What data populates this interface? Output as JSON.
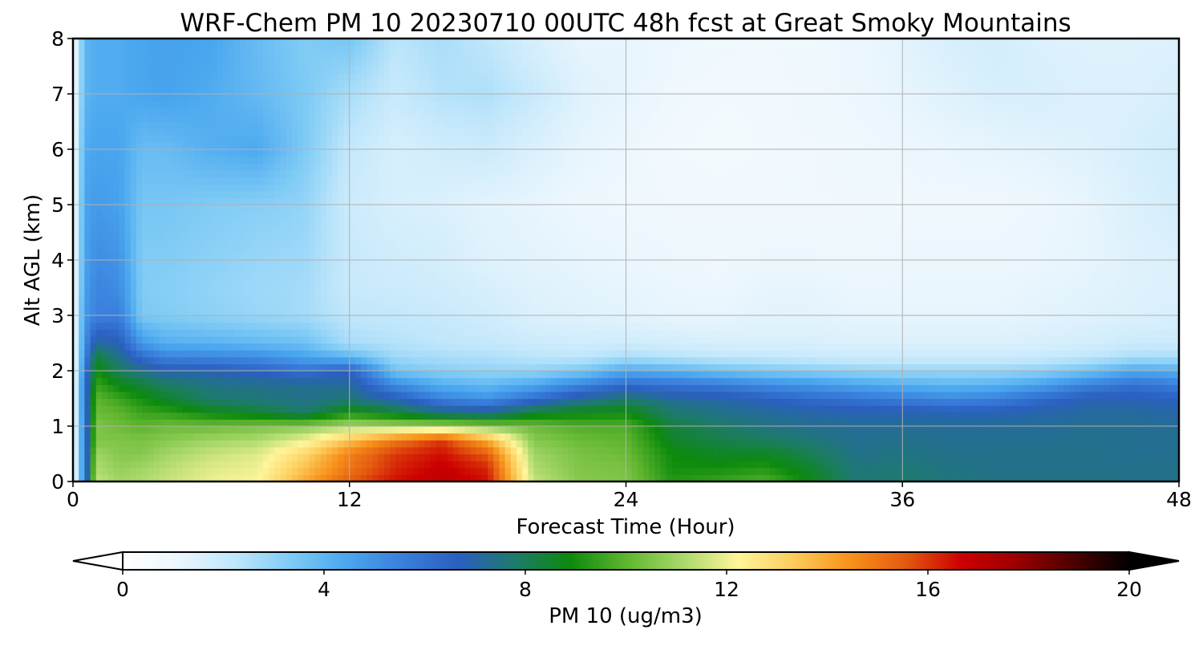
{
  "chart_data": {
    "type": "heatmap",
    "title": "WRF-Chem PM 10  20230710 00UTC 48h fcst at Great Smoky Mountains",
    "xlabel": "Forecast Time (Hour)",
    "ylabel": "Alt AGL (km)",
    "xlim": [
      0,
      48
    ],
    "ylim": [
      0,
      8
    ],
    "x_ticks": [
      "0",
      "12",
      "24",
      "36",
      "48"
    ],
    "y_ticks": [
      "0",
      "1",
      "2",
      "3",
      "4",
      "5",
      "6",
      "7",
      "8"
    ],
    "grid": true,
    "hours": [
      0,
      0.5,
      1,
      2,
      3,
      4,
      6,
      8,
      10,
      12,
      14,
      16,
      18,
      20,
      22,
      24,
      26,
      28,
      30,
      32,
      34,
      36,
      38,
      40,
      42,
      44,
      46,
      48
    ],
    "altitudes_km": [
      0,
      0.25,
      0.5,
      0.75,
      1,
      1.25,
      1.5,
      1.75,
      2,
      2.25,
      2.5,
      3,
      3.5,
      4,
      5,
      6,
      7,
      8
    ],
    "profiles": [
      {
        "hour": 0,
        "pm10": [
          0.5,
          0.5,
          0.5,
          0.5,
          0.5,
          0.5,
          0.5,
          0.5,
          0.5,
          0.5,
          0.5,
          0.5,
          0.5,
          0.5,
          0.5,
          0.5,
          0.5,
          0.5
        ]
      },
      {
        "hour": 0.5,
        "pm10": [
          5.5,
          5.5,
          5.5,
          5.6,
          5.6,
          5.7,
          5.8,
          5.8,
          5.5,
          5.2,
          5,
          4.8,
          4.6,
          4.5,
          4.5,
          4.3,
          4,
          4
        ]
      },
      {
        "hour": 1,
        "pm10": [
          11.5,
          11.2,
          11,
          10.5,
          10.5,
          10.2,
          10,
          9.5,
          9,
          8.5,
          7.2,
          5.5,
          5.4,
          5.2,
          4.8,
          4.5,
          4.3,
          4.3
        ]
      },
      {
        "hour": 2,
        "pm10": [
          11,
          10.8,
          10.6,
          10.5,
          10.2,
          10,
          9.5,
          8.8,
          8,
          7.4,
          6.8,
          5.6,
          5.2,
          5,
          4.6,
          4.5,
          4.3,
          4.3
        ]
      },
      {
        "hour": 3,
        "pm10": [
          11.2,
          11,
          10.6,
          10.4,
          10,
          9.5,
          9,
          8.4,
          7.4,
          6.2,
          4.8,
          3.4,
          3.3,
          3.3,
          3.5,
          3.8,
          4.5,
          4.5
        ]
      },
      {
        "hour": 4,
        "pm10": [
          11.5,
          11.3,
          11,
          10.6,
          10.2,
          9.4,
          8.5,
          8,
          6.8,
          5.5,
          4.2,
          3.3,
          3.2,
          3.3,
          3.5,
          3.8,
          4.6,
          4.6
        ]
      },
      {
        "hour": 6,
        "pm10": [
          12,
          11.8,
          11.5,
          11,
          10.2,
          8.8,
          7.8,
          7.5,
          6.8,
          5.4,
          4.1,
          3.1,
          3,
          3.1,
          3.3,
          4.2,
          4.3,
          4.5
        ]
      },
      {
        "hour": 8,
        "pm10": [
          12.2,
          12,
          11.8,
          11.2,
          10.4,
          8.4,
          7.6,
          7.4,
          6.5,
          5.2,
          3.9,
          2.9,
          2.8,
          2.9,
          3.2,
          4.4,
          3.9,
          3.8
        ]
      },
      {
        "hour": 10,
        "pm10": [
          14,
          13.5,
          13,
          12,
          10.6,
          7.8,
          7.4,
          7.3,
          6,
          4.6,
          3.7,
          2.7,
          2.7,
          2.8,
          3,
          3.4,
          3.4,
          3.3
        ]
      },
      {
        "hour": 12,
        "pm10": [
          15.5,
          15,
          14.8,
          13.5,
          11.2,
          9,
          7.6,
          7.2,
          6.6,
          4,
          2.6,
          2.2,
          2,
          2,
          1.9,
          2.1,
          2.6,
          3.5
        ]
      },
      {
        "hour": 14,
        "pm10": [
          16.5,
          16.2,
          16,
          15,
          11,
          8.4,
          6.8,
          5.2,
          3.6,
          2.8,
          2.4,
          2.1,
          1.9,
          1.8,
          1.6,
          1.6,
          2,
          2.3
        ]
      },
      {
        "hour": 16,
        "pm10": [
          17,
          16.8,
          16.5,
          16,
          11,
          7.5,
          5.5,
          4.2,
          3.2,
          2.6,
          2.2,
          2,
          1.8,
          1.7,
          1.5,
          1.8,
          2.4,
          2.6
        ]
      },
      {
        "hour": 18,
        "pm10": [
          16.5,
          16.2,
          15.5,
          14,
          10.6,
          7.3,
          5,
          3.9,
          3,
          2.5,
          2.1,
          1.8,
          1.6,
          1.4,
          1.3,
          1.9,
          2.5,
          2.2
        ]
      },
      {
        "hour": 20,
        "pm10": [
          11.5,
          11.2,
          11,
          10.6,
          10.2,
          8.5,
          6.1,
          4.4,
          3,
          2.3,
          1.9,
          1.5,
          1.4,
          1.3,
          1.2,
          1.5,
          2,
          1.6
        ]
      },
      {
        "hour": 22,
        "pm10": [
          10.6,
          10.5,
          10.4,
          10.2,
          9.8,
          8.8,
          7.2,
          5.4,
          3.4,
          2.2,
          1.8,
          1.4,
          1.3,
          1.2,
          1,
          1.2,
          1.4,
          1.2
        ]
      },
      {
        "hour": 24,
        "pm10": [
          10.5,
          10.4,
          10.2,
          10,
          9.8,
          8.9,
          7.8,
          6.2,
          4.4,
          2.6,
          1.8,
          1.3,
          1.2,
          1.1,
          0.9,
          1,
          1.2,
          1.2
        ]
      },
      {
        "hour": 26,
        "pm10": [
          9.2,
          9,
          8.9,
          8.6,
          8.3,
          7.8,
          7.2,
          5.9,
          4.1,
          2.4,
          1.7,
          1.2,
          1.1,
          1,
          0.8,
          0.7,
          0.9,
          1
        ]
      },
      {
        "hour": 28,
        "pm10": [
          9.5,
          9,
          8.6,
          8.2,
          7.9,
          7.4,
          7,
          5.7,
          3.7,
          2.2,
          1.6,
          1.2,
          1,
          0.9,
          0.8,
          0.6,
          0.7,
          0.9
        ]
      },
      {
        "hour": 30,
        "pm10": [
          9.8,
          9.2,
          8.6,
          8,
          7.5,
          7.2,
          6.6,
          5.2,
          3.4,
          2.1,
          1.6,
          1.3,
          1.2,
          1,
          0.8,
          0.7,
          0.7,
          0.8
        ]
      },
      {
        "hour": 32,
        "pm10": [
          8.8,
          8.5,
          8.1,
          7.7,
          7.3,
          7,
          6.2,
          4.9,
          3.2,
          2,
          1.6,
          1.3,
          1.2,
          1,
          0.8,
          0.8,
          0.9,
          0.9
        ]
      },
      {
        "hour": 34,
        "pm10": [
          7.7,
          7.6,
          7.4,
          7.3,
          7.2,
          6.9,
          5.9,
          4.5,
          3,
          1.9,
          1.5,
          1.2,
          1.1,
          0.9,
          0.8,
          0.9,
          1,
          1
        ]
      },
      {
        "hour": 36,
        "pm10": [
          7.8,
          7.7,
          7.5,
          7.4,
          7.2,
          6.9,
          5.6,
          4.2,
          2.9,
          1.9,
          1.5,
          1.2,
          1.1,
          1,
          0.9,
          1,
          1.2,
          1.3
        ]
      },
      {
        "hour": 38,
        "pm10": [
          7.6,
          7.5,
          7.4,
          7.3,
          7.2,
          6.8,
          5.3,
          4,
          2.9,
          1.9,
          1.5,
          1.2,
          1.1,
          1,
          0.9,
          1.1,
          1.4,
          1.6
        ]
      },
      {
        "hour": 40,
        "pm10": [
          7.5,
          7.4,
          7.4,
          7.3,
          7.2,
          6.8,
          5.5,
          4.1,
          2.9,
          1.9,
          1.5,
          1.2,
          1.1,
          1,
          0.9,
          1.2,
          1.6,
          1.7
        ]
      },
      {
        "hour": 42,
        "pm10": [
          7.5,
          7.4,
          7.4,
          7.3,
          7.2,
          7,
          6.2,
          4.6,
          3.1,
          2,
          1.6,
          1.3,
          1.2,
          1.1,
          1,
          1.3,
          1.6,
          1.5
        ]
      },
      {
        "hour": 44,
        "pm10": [
          7.5,
          7.4,
          7.4,
          7.4,
          7.3,
          7.1,
          6.8,
          5.5,
          3.6,
          2.2,
          1.7,
          1.4,
          1.3,
          1.2,
          1.2,
          1.4,
          1.5,
          1.4
        ]
      },
      {
        "hour": 46,
        "pm10": [
          7.4,
          7.4,
          7.3,
          7.3,
          7.3,
          7.1,
          6.8,
          6,
          4.4,
          2.6,
          1.9,
          1.5,
          1.4,
          1.4,
          1.5,
          1.6,
          1.5,
          1.4
        ]
      },
      {
        "hour": 48,
        "pm10": [
          7.4,
          7.4,
          7.3,
          7.3,
          7.2,
          7,
          6.6,
          5.6,
          4.2,
          2.6,
          1.9,
          1.6,
          1.5,
          1.5,
          1.7,
          1.8,
          1.6,
          1.5
        ]
      }
    ],
    "colorbar": {
      "label": "PM 10  (ug/m3)",
      "min": 0,
      "max": 20,
      "extend": "both",
      "ticks": [
        "0",
        "4",
        "8",
        "12",
        "16",
        "20"
      ],
      "colors": [
        "#ffffff",
        "#eaf6fd",
        "#bfe6fb",
        "#7fcbf5",
        "#4aa7ef",
        "#3a7fdc",
        "#2a5fbf",
        "#1e7a6e",
        "#0c8a0c",
        "#5fb52e",
        "#a8d86a",
        "#fff59a",
        "#fccc5c",
        "#f8921a",
        "#e35a10",
        "#cc0000",
        "#9a0000",
        "#4d0000",
        "#000000"
      ]
    }
  }
}
